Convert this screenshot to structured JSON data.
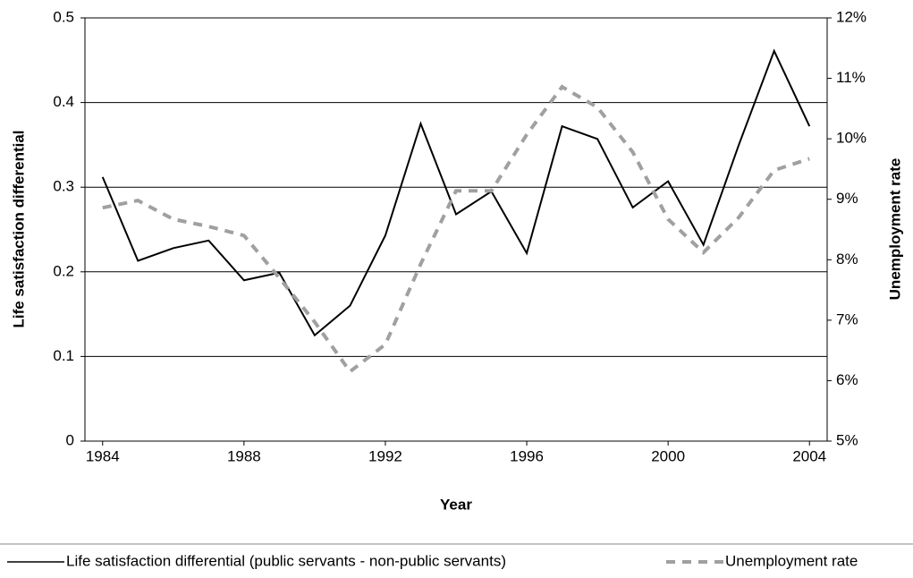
{
  "chart_data": {
    "type": "line",
    "x_label": "Year",
    "y_label": "Life satisfaction differential",
    "y2_label": "Unemployment rate",
    "x": [
      1984,
      1985,
      1986,
      1987,
      1988,
      1989,
      1990,
      1991,
      1992,
      1993,
      1994,
      1995,
      1996,
      1997,
      1998,
      1999,
      2000,
      2001,
      2002,
      2003,
      2004
    ],
    "xlim": [
      1983.5,
      2004.5
    ],
    "xticks": [
      1984,
      1988,
      1992,
      1996,
      2000,
      2004
    ],
    "ylim": [
      0,
      0.5
    ],
    "yticks": [
      0,
      0.1,
      0.2,
      0.3,
      0.4,
      0.5
    ],
    "y2lim": [
      5,
      12
    ],
    "y2ticks": [
      {
        "value": 5,
        "label": "5%"
      },
      {
        "value": 6,
        "label": "6%"
      },
      {
        "value": 7,
        "label": "7%"
      },
      {
        "value": 8,
        "label": "8%"
      },
      {
        "value": 9,
        "label": "9%"
      },
      {
        "value": 10,
        "label": "10%"
      },
      {
        "value": 11,
        "label": "11%"
      },
      {
        "value": 12,
        "label": "12%"
      }
    ],
    "grid": true,
    "series": [
      {
        "name": "Life satisfaction differential (public servants - non-public servants)",
        "color": "#000000",
        "dash": false,
        "values": [
          0.312,
          0.213,
          0.228,
          0.237,
          0.19,
          0.199,
          0.125,
          0.16,
          0.243,
          0.375,
          0.268,
          0.295,
          0.222,
          0.372,
          0.357,
          0.276,
          0.307,
          0.232,
          0.35,
          0.461,
          0.372
        ]
      },
      {
        "name": "Unemployment rate",
        "color": "#a0a0a0",
        "dash": true,
        "axis": "y2",
        "values": [
          8.86,
          8.98,
          8.67,
          8.55,
          8.4,
          7.7,
          6.97,
          6.15,
          6.6,
          7.93,
          9.14,
          9.14,
          10.07,
          10.86,
          10.52,
          9.78,
          8.67,
          8.12,
          8.7,
          9.48,
          9.67
        ]
      }
    ]
  }
}
